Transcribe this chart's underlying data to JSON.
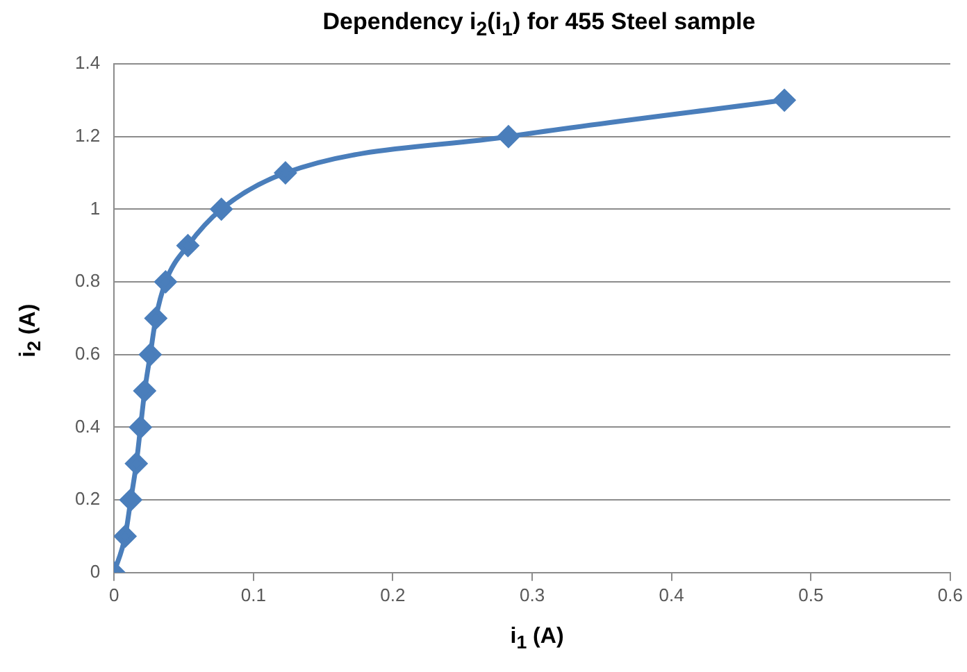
{
  "chart_data": {
    "type": "line",
    "title": "Dependency i$_{2}$(i$_{1}$) for 455 Steel sample",
    "xlabel": "i$_{1}$ (A)",
    "ylabel": "i$_{2}$ (A)",
    "series": [
      {
        "color": "#4a7ebb",
        "x": [
          0,
          0.008,
          0.012,
          0.016,
          0.019,
          0.022,
          0.026,
          0.03,
          0.037,
          0.053,
          0.077,
          0.123,
          0.283,
          0.481
        ],
        "values": [
          0,
          0.1,
          0.2,
          0.3,
          0.4,
          0.5,
          0.6,
          0.7,
          0.8,
          0.9,
          1.0,
          1.1,
          1.2,
          1.3
        ]
      }
    ],
    "xlim": [
      0,
      0.6
    ],
    "xticks": [
      0,
      0.1,
      0.2,
      0.3,
      0.4,
      0.5,
      0.6
    ],
    "ylim": [
      0,
      1.4
    ],
    "yticks": [
      0,
      0.2,
      0.4,
      0.6,
      0.8,
      1,
      1.2,
      1.4
    ],
    "grid": "y",
    "legend": false,
    "marker": "diamond",
    "line_style": "solid"
  }
}
